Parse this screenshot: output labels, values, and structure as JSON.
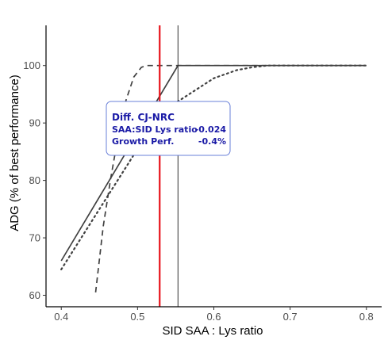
{
  "chart_data": {
    "type": "line",
    "title": "",
    "xlabel": "SID SAA : Lys ratio",
    "ylabel": "ADG (% of best performance)",
    "xlim": [
      0.38,
      0.82
    ],
    "ylim": [
      58.0,
      107.0
    ],
    "xticks": [
      "0.4",
      "0.5",
      "0.6",
      "0.7",
      "0.8"
    ],
    "yticks": [
      "60",
      "70",
      "80",
      "90",
      "100"
    ],
    "grid": false,
    "legend": "none",
    "series": [
      {
        "style": "solid",
        "color": "#404040",
        "x": [
          0.4,
          0.553,
          0.8
        ],
        "y": [
          66.0,
          100.0,
          100.0
        ]
      },
      {
        "style": "dashed",
        "color": "#404040",
        "x": [
          0.445,
          0.455,
          0.465,
          0.475,
          0.485,
          0.495,
          0.505,
          0.512,
          0.52,
          0.8
        ],
        "y": [
          60.5,
          72.0,
          80.5,
          88.0,
          94.0,
          98.0,
          99.7,
          100.0,
          100.0,
          100.0
        ]
      },
      {
        "style": "dotted",
        "color": "#404040",
        "x": [
          0.4,
          0.45,
          0.5,
          0.55,
          0.6,
          0.63,
          0.65,
          0.67,
          0.7,
          0.8
        ],
        "y": [
          64.5,
          75.0,
          85.5,
          93.5,
          97.8,
          99.2,
          99.7,
          100.0,
          100.0,
          100.0
        ]
      }
    ],
    "vlines": [
      {
        "x": 0.529,
        "color": "#e8141c",
        "width": 2.2
      },
      {
        "x": 0.553,
        "color": "#303030",
        "width": 1.0
      }
    ],
    "annotation": {
      "title": "Diff. CJ-NRC",
      "rows": [
        {
          "label": "SAA:SID Lys ratio",
          "value": "-0.024"
        },
        {
          "label": "Growth Perf.",
          "value": "-0.4%"
        }
      ],
      "border_color": "#6a80d8",
      "text_color": "#1a1aa6"
    }
  }
}
